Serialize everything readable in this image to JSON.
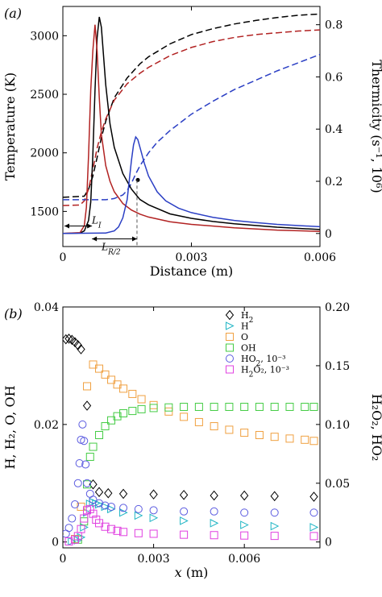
{
  "chart_data": [
    {
      "type": "line",
      "panel_label": "(a)",
      "xlabel": "Distance (m)",
      "ylabel_left": "Temperature (K)",
      "ylabel_right": "Thermicity (s⁻¹, 10⁶)",
      "xlim": [
        0,
        0.006
      ],
      "ylim_left": [
        1200,
        3250
      ],
      "ylim_right": [
        -0.05,
        0.87
      ],
      "xticks": [
        {
          "v": 0,
          "label": "0"
        },
        {
          "v": 0.003,
          "label": "0.003"
        },
        {
          "v": 0.006,
          "label": "0.006"
        }
      ],
      "yticks_left": [
        {
          "v": 1500,
          "label": "1500"
        },
        {
          "v": 2000,
          "label": "2000"
        },
        {
          "v": 2500,
          "label": "2500"
        },
        {
          "v": 3000,
          "label": "3000"
        }
      ],
      "yticks_right": [
        {
          "v": 0,
          "label": "0"
        },
        {
          "v": 0.2,
          "label": "0.2"
        },
        {
          "v": 0.4,
          "label": "0.4"
        },
        {
          "v": 0.6,
          "label": "0.6"
        },
        {
          "v": 0.8,
          "label": "0.8"
        }
      ],
      "annotations": [
        {
          "text": "L",
          "sub": "I"
        },
        {
          "text": "L",
          "sub": "R/2"
        }
      ],
      "series": [
        {
          "color": "#000000",
          "dash": "dashed",
          "axis": "left",
          "x": [
            0,
            0.0005,
            0.0006,
            0.0007,
            0.0008,
            0.0009,
            0.001,
            0.0012,
            0.0015,
            0.0018,
            0.002,
            0.0025,
            0.003,
            0.0035,
            0.004,
            0.0045,
            0.005,
            0.0055,
            0.006
          ],
          "y": [
            1620,
            1630,
            1690,
            1800,
            1960,
            2130,
            2270,
            2470,
            2640,
            2760,
            2820,
            2930,
            3010,
            3060,
            3100,
            3130,
            3155,
            3175,
            3185
          ]
        },
        {
          "color": "#b22222",
          "dash": "dashed",
          "axis": "left",
          "x": [
            0,
            0.0004,
            0.0005,
            0.0006,
            0.0007,
            0.0008,
            0.0009,
            0.001,
            0.0012,
            0.0015,
            0.0018,
            0.002,
            0.0025,
            0.003,
            0.0035,
            0.004,
            0.0045,
            0.005,
            0.0055,
            0.006
          ],
          "y": [
            1550,
            1555,
            1590,
            1690,
            1860,
            2040,
            2180,
            2290,
            2450,
            2590,
            2680,
            2730,
            2830,
            2900,
            2950,
            2985,
            3010,
            3025,
            3040,
            3050
          ]
        },
        {
          "color": "#2b3fc4",
          "dash": "dashed",
          "axis": "left",
          "x": [
            0,
            0.001,
            0.0012,
            0.0014,
            0.0015,
            0.0016,
            0.0017,
            0.0018,
            0.002,
            0.0022,
            0.0025,
            0.003,
            0.0035,
            0.004,
            0.0045,
            0.005,
            0.0055,
            0.006
          ],
          "y": [
            1600,
            1600,
            1610,
            1640,
            1680,
            1740,
            1820,
            1890,
            2000,
            2090,
            2190,
            2330,
            2440,
            2540,
            2620,
            2700,
            2770,
            2840
          ]
        },
        {
          "color": "#000000",
          "dash": "solid",
          "axis": "right",
          "x": [
            0,
            0.0004,
            0.0005,
            0.0006,
            0.00065,
            0.0007,
            0.00075,
            0.0008,
            0.00085,
            0.0009,
            0.001,
            0.0011,
            0.0012,
            0.0014,
            0.0016,
            0.0018,
            0.002,
            0.0025,
            0.003,
            0.0035,
            0.004,
            0.005,
            0.006
          ],
          "y": [
            0,
            0.002,
            0.01,
            0.05,
            0.12,
            0.3,
            0.55,
            0.75,
            0.83,
            0.79,
            0.57,
            0.42,
            0.33,
            0.23,
            0.17,
            0.13,
            0.11,
            0.075,
            0.058,
            0.046,
            0.037,
            0.024,
            0.015
          ]
        },
        {
          "color": "#b22222",
          "dash": "solid",
          "axis": "right",
          "x": [
            0,
            0.0004,
            0.0005,
            0.00055,
            0.0006,
            0.00065,
            0.0007,
            0.00075,
            0.0008,
            0.00085,
            0.0009,
            0.001,
            0.0011,
            0.0012,
            0.0014,
            0.0016,
            0.0018,
            0.002,
            0.0025,
            0.003,
            0.004,
            0.005,
            0.006
          ],
          "y": [
            0,
            0.003,
            0.03,
            0.1,
            0.3,
            0.55,
            0.7,
            0.8,
            0.7,
            0.52,
            0.38,
            0.26,
            0.2,
            0.16,
            0.115,
            0.09,
            0.074,
            0.063,
            0.045,
            0.035,
            0.022,
            0.013,
            0.008
          ]
        },
        {
          "color": "#2b3fc4",
          "dash": "solid",
          "axis": "right",
          "x": [
            0,
            0.001,
            0.0012,
            0.0013,
            0.0014,
            0.0015,
            0.0016,
            0.00165,
            0.0017,
            0.00175,
            0.0018,
            0.0019,
            0.002,
            0.0022,
            0.0024,
            0.0027,
            0.003,
            0.0035,
            0.004,
            0.0045,
            0.005,
            0.006
          ],
          "y": [
            0,
            0.002,
            0.01,
            0.025,
            0.06,
            0.13,
            0.28,
            0.34,
            0.37,
            0.36,
            0.33,
            0.27,
            0.22,
            0.16,
            0.125,
            0.097,
            0.08,
            0.062,
            0.05,
            0.042,
            0.035,
            0.026
          ]
        }
      ],
      "markers": [
        {
          "x": 0.00175,
          "y": 0.205,
          "axis": "right",
          "color": "#000000"
        }
      ]
    },
    {
      "type": "scatter",
      "panel_label": "(b)",
      "xlabel_italic": "x",
      "xlabel_unit": " (m)",
      "ylabel_left": "H, H₂, O, OH",
      "ylabel_right": "H₂O₂, HO₂",
      "xlim": [
        0,
        0.0085
      ],
      "ylim_left": [
        -0.001,
        0.04
      ],
      "ylim_right": [
        -0.005,
        0.2
      ],
      "xticks": [
        {
          "v": 0,
          "label": "0"
        },
        {
          "v": 0.003,
          "label": "0.003"
        },
        {
          "v": 0.006,
          "label": "0.006"
        }
      ],
      "yticks_left": [
        {
          "v": 0,
          "label": "0"
        },
        {
          "v": 0.02,
          "label": "0.02"
        },
        {
          "v": 0.04,
          "label": "0.04"
        }
      ],
      "yticks_right": [
        {
          "v": 0,
          "label": "0"
        },
        {
          "v": 0.05,
          "label": "0.05"
        },
        {
          "v": 0.1,
          "label": "0.10"
        },
        {
          "v": 0.15,
          "label": "0.15"
        },
        {
          "v": 0.2,
          "label": "0.20"
        }
      ],
      "series": [
        {
          "legend": "H",
          "sub": "2",
          "extra": "",
          "marker": "diamond",
          "color": "#000000",
          "axis": "left",
          "x": [
            0.0001,
            0.0002,
            0.0003,
            0.0004,
            0.0005,
            0.0006,
            0.0008,
            0.001,
            0.0012,
            0.0015,
            0.002,
            0.003,
            0.004,
            0.005,
            0.006,
            0.007,
            0.0083
          ],
          "y": [
            0.0345,
            0.0346,
            0.0344,
            0.034,
            0.0335,
            0.0328,
            0.0232,
            0.0098,
            0.0085,
            0.0083,
            0.0082,
            0.0081,
            0.008,
            0.0079,
            0.0079,
            0.0078,
            0.0077
          ]
        },
        {
          "legend": "H",
          "sub": "",
          "extra": "",
          "marker": "triangle",
          "color": "#1fb5c4",
          "axis": "left",
          "x": [
            0.0003,
            0.0005,
            0.0006,
            0.0007,
            0.0008,
            0.0009,
            0.001,
            0.0011,
            0.0012,
            0.0014,
            0.0016,
            0.002,
            0.0025,
            0.003,
            0.004,
            0.005,
            0.006,
            0.007,
            0.0083
          ],
          "y": [
            0.0001,
            0.0003,
            0.0008,
            0.0025,
            0.005,
            0.0065,
            0.0068,
            0.0066,
            0.0064,
            0.006,
            0.0056,
            0.005,
            0.0045,
            0.0041,
            0.0036,
            0.0032,
            0.0029,
            0.0027,
            0.0025
          ]
        },
        {
          "legend": "O",
          "sub": "",
          "extra": "",
          "marker": "square",
          "color": "#f0a040",
          "axis": "left",
          "x": [
            0.0004,
            0.0006,
            0.0008,
            0.001,
            0.0012,
            0.0014,
            0.0016,
            0.0018,
            0.002,
            0.0023,
            0.0026,
            0.003,
            0.0035,
            0.004,
            0.0045,
            0.005,
            0.0055,
            0.006,
            0.0065,
            0.007,
            0.0075,
            0.008,
            0.0083
          ],
          "y": [
            0.0005,
            0.006,
            0.0265,
            0.0302,
            0.0295,
            0.0285,
            0.0276,
            0.0268,
            0.0261,
            0.0252,
            0.0243,
            0.0233,
            0.0222,
            0.0213,
            0.0204,
            0.0197,
            0.0191,
            0.0186,
            0.0182,
            0.0179,
            0.0176,
            0.0174,
            0.0172
          ]
        },
        {
          "legend": "OH",
          "sub": "",
          "extra": "",
          "marker": "square",
          "color": "#44cc44",
          "axis": "left",
          "x": [
            0.0005,
            0.0007,
            0.0008,
            0.0009,
            0.001,
            0.0012,
            0.0014,
            0.0016,
            0.0018,
            0.002,
            0.0023,
            0.0026,
            0.003,
            0.0035,
            0.004,
            0.0045,
            0.005,
            0.0055,
            0.006,
            0.0065,
            0.007,
            0.0075,
            0.008,
            0.0083
          ],
          "y": [
            0.0004,
            0.0035,
            0.0098,
            0.0145,
            0.0162,
            0.0182,
            0.0197,
            0.0207,
            0.0214,
            0.0219,
            0.0223,
            0.0226,
            0.0228,
            0.0229,
            0.023,
            0.023,
            0.023,
            0.023,
            0.023,
            0.023,
            0.023,
            0.023,
            0.023,
            0.023
          ]
        },
        {
          "legend": "HO",
          "sub": "2",
          "extra": ", 10⁻³",
          "marker": "circle",
          "color": "#5b5be0",
          "axis": "right",
          "x": [
            0.0001,
            0.0002,
            0.0003,
            0.0004,
            0.0005,
            0.00055,
            0.0006,
            0.00065,
            0.0007,
            0.00075,
            0.0008,
            0.0009,
            0.001,
            0.0012,
            0.0014,
            0.0016,
            0.002,
            0.0025,
            0.003,
            0.004,
            0.005,
            0.006,
            0.007,
            0.0083
          ],
          "y": [
            0.007,
            0.012,
            0.02,
            0.032,
            0.05,
            0.067,
            0.087,
            0.1,
            0.086,
            0.066,
            0.05,
            0.041,
            0.036,
            0.033,
            0.031,
            0.03,
            0.029,
            0.028,
            0.027,
            0.026,
            0.026,
            0.025,
            0.025,
            0.025
          ]
        },
        {
          "legend": "H",
          "sub": "2",
          "extra": "O₂, 10⁻³",
          "marker": "square",
          "color": "#e040e0",
          "axis": "right",
          "x": [
            0.0002,
            0.0004,
            0.0005,
            0.0006,
            0.0007,
            0.0008,
            0.0009,
            0.001,
            0.0011,
            0.0012,
            0.0014,
            0.0016,
            0.0018,
            0.002,
            0.0025,
            0.003,
            0.004,
            0.005,
            0.006,
            0.007,
            0.0083
          ],
          "y": [
            0.0005,
            0.002,
            0.005,
            0.011,
            0.02,
            0.027,
            0.028,
            0.024,
            0.019,
            0.016,
            0.013,
            0.011,
            0.0095,
            0.0085,
            0.0075,
            0.007,
            0.0062,
            0.0058,
            0.0055,
            0.0052,
            0.005
          ]
        }
      ]
    }
  ]
}
